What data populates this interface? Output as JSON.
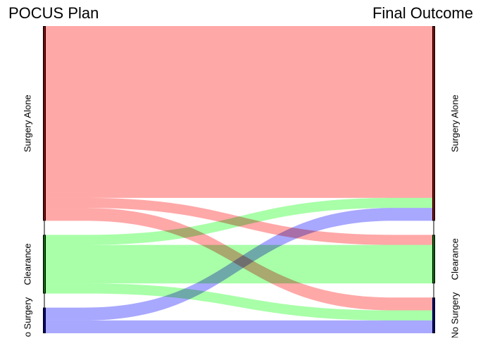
{
  "diagram": {
    "left_title": "POCUS Plan",
    "right_title": "Final Outcome",
    "nodes": {
      "left": [
        {
          "id": "surgery-alone",
          "label": "Surgery Alone",
          "color": "#ff0000"
        },
        {
          "id": "clearance",
          "label": "Clearance",
          "color": "#00cc00"
        },
        {
          "id": "no-surgery",
          "label": "No Surgery",
          "color": "#0000ff"
        }
      ],
      "right": [
        {
          "id": "surgery-alone",
          "label": "Surgery Alone",
          "color": "#ff0000"
        },
        {
          "id": "clearance",
          "label": "Clearance",
          "color": "#00cc00"
        },
        {
          "id": "no-surgery",
          "label": "No Surgery",
          "color": "#0000ff"
        }
      ]
    },
    "flows": [
      {
        "from": "surgery-alone",
        "to": "surgery-alone",
        "value": 37.5,
        "color": "#ff9999"
      },
      {
        "from": "surgery-alone",
        "to": "clearance",
        "value": 2.2,
        "color": "#ff9999"
      },
      {
        "from": "surgery-alone",
        "to": "no-surgery",
        "value": 2.8,
        "color": "#ff9999"
      },
      {
        "from": "clearance",
        "to": "surgery-alone",
        "value": 2.2,
        "color": "#99ff99"
      },
      {
        "from": "clearance",
        "to": "clearance",
        "value": 8.4,
        "color": "#99ff99"
      },
      {
        "from": "clearance",
        "to": "no-surgery",
        "value": 2.2,
        "color": "#99ff99"
      },
      {
        "from": "no-surgery",
        "to": "surgery-alone",
        "value": 2.8,
        "color": "#9999ff"
      },
      {
        "from": "no-surgery",
        "to": "no-surgery",
        "value": 2.8,
        "color": "#9999ff"
      }
    ]
  }
}
